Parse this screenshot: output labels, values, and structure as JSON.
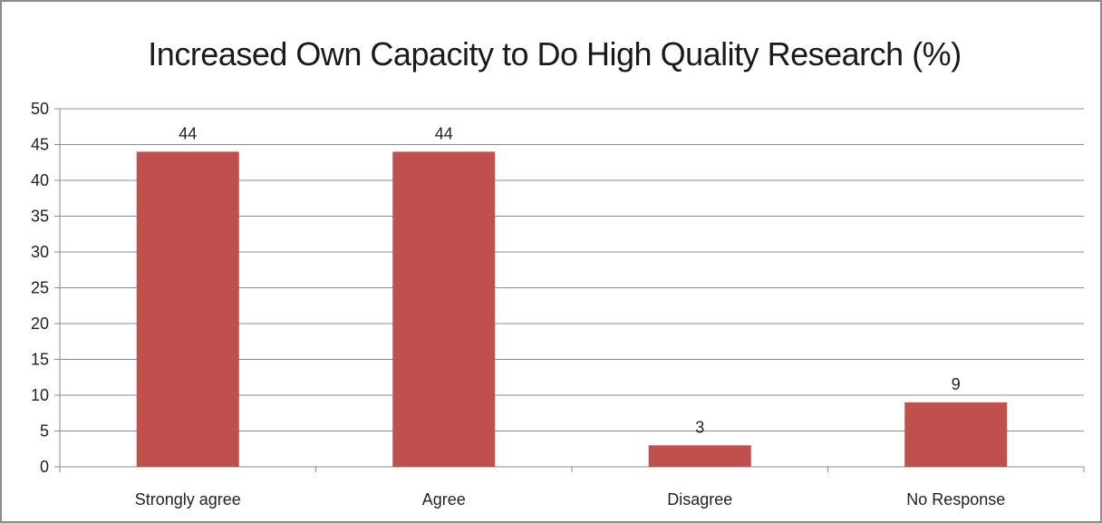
{
  "chart_data": {
    "type": "bar",
    "title": "Increased Own Capacity to Do High Quality Research (%)",
    "xlabel": "",
    "ylabel": "",
    "categories": [
      "Strongly agree",
      "Agree",
      "Disagree",
      "No Response"
    ],
    "values": [
      44,
      44,
      3,
      9
    ],
    "data_labels": [
      "44",
      "44",
      "3",
      "9"
    ],
    "ylim": [
      0,
      50
    ],
    "y_ticks": [
      0,
      5,
      10,
      15,
      20,
      25,
      30,
      35,
      40,
      45,
      50
    ],
    "y_tick_labels": [
      "0",
      "5",
      "10",
      "15",
      "20",
      "25",
      "30",
      "35",
      "40",
      "45",
      "50"
    ],
    "grid": true,
    "legend": "none",
    "bar_color": "#c0504d",
    "grid_color": "#8c8c8c"
  }
}
